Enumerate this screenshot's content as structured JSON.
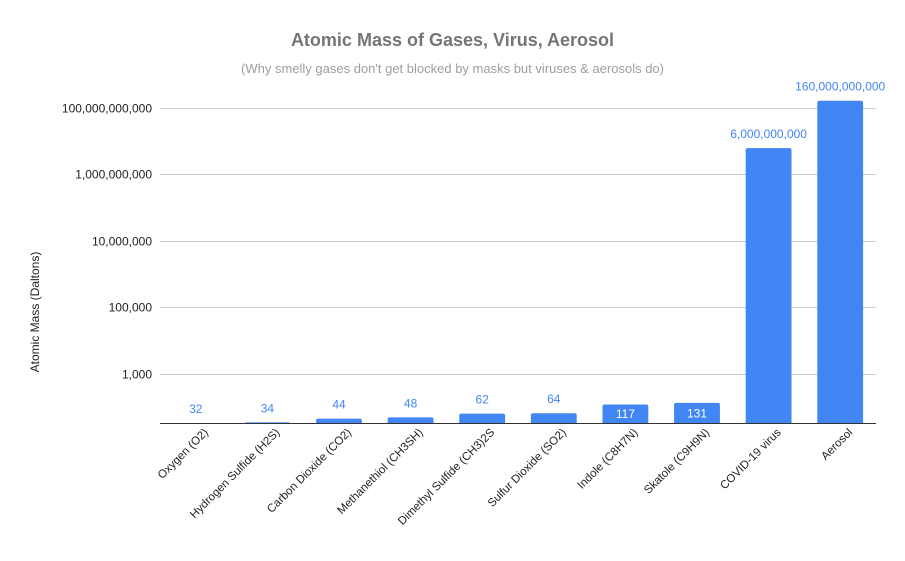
{
  "chart_data": {
    "type": "bar",
    "title": "Atomic Mass of Gases, Virus, Aerosol",
    "subtitle": "(Why smelly gases don't get blocked by masks but viruses & aerosols do)",
    "ylabel": "Atomic Mass (Daltons)",
    "xlabel": "",
    "yscale": "log",
    "grid": true,
    "legend": "none",
    "ytick_values": [
      1000,
      100000,
      10000000,
      1000000000,
      100000000000
    ],
    "ytick_labels": [
      "1,000",
      "100,000",
      "10,000,000",
      "1,000,000,000",
      "100,000,000,000"
    ],
    "categories": [
      "Oxygen (O2)",
      "Hydrogen Sulfide (H2S)",
      "Carbon Dioxide (CO2)",
      "Methanethiol (CH3SH)",
      "Dimethyl Sulfide (CH3)2S",
      "Sulfur Dioxide (SO2)",
      "Indole (C8H7N)",
      "Skatole (C9H9N)",
      "COVID-19 virus",
      "Aerosol"
    ],
    "values": [
      32,
      34,
      44,
      48,
      62,
      64,
      117,
      131,
      6000000000,
      160000000000
    ],
    "data_labels": [
      "32",
      "34",
      "44",
      "48",
      "62",
      "64",
      "117",
      "131",
      "6,000,000,000",
      "160,000,000,000"
    ],
    "bar_color": "#4285f4",
    "label_color_outside": "#4285f4",
    "label_color_inside": "#ffffff"
  }
}
